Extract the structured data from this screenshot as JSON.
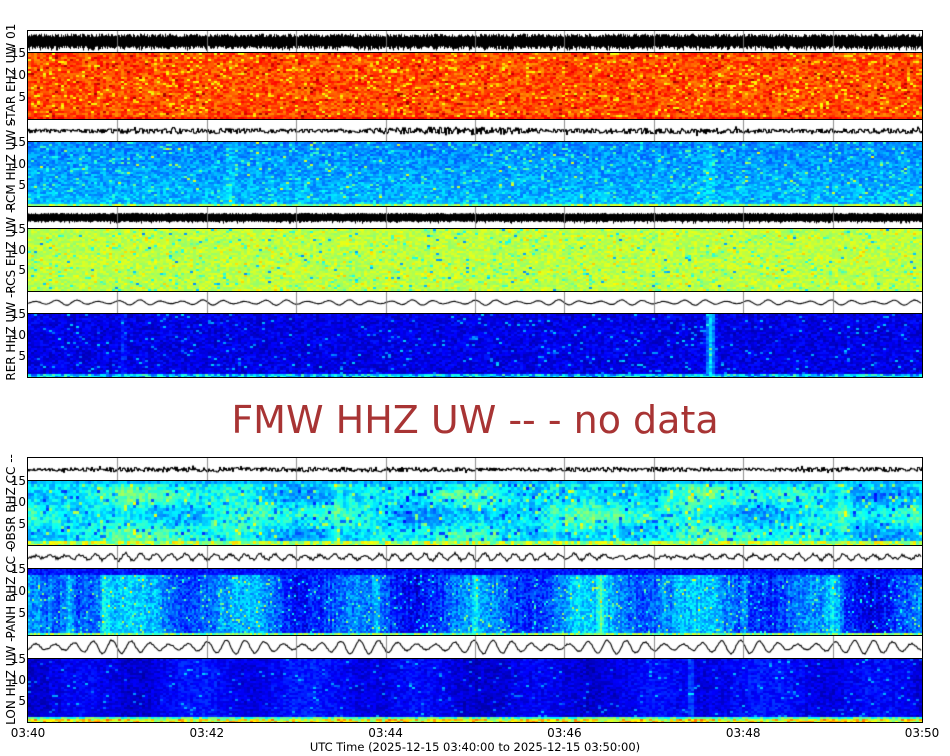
{
  "axis": {
    "x_tick_labels": [
      "03:40",
      "03:42",
      "03:44",
      "03:46",
      "03:48",
      "03:50"
    ],
    "x_label": "UTC Time (2025-12-15 03:40:00 to 2025-12-15 03:50:00)",
    "freq_tick_labels": [
      "15",
      "10",
      "5"
    ]
  },
  "no_data": {
    "text": "FMW HHZ UW -- - no data",
    "color": "#a83434"
  },
  "chart_data": {
    "type": "heatmap",
    "subtype": "multi-station seismic spectrograms with waveform traces",
    "colormap": "jet",
    "time_start": "2025-12-15 03:40:00",
    "time_end": "2025-12-15 03:50:00",
    "x_tick_labels": [
      "03:40",
      "03:42",
      "03:44",
      "03:46",
      "03:48",
      "03:50"
    ],
    "xlabel": "UTC Time (2025-12-15 03:40:00 to 2025-12-15 03:50:00)",
    "minute_gridlines": true,
    "freq_ticks_hz": [
      15,
      10,
      5
    ],
    "freq_range_hz": [
      0,
      15
    ],
    "no_data_station": {
      "label": "FMW HHZ UW --",
      "status": "no data"
    },
    "panels": [
      {
        "station": "STAR EHZ UW 01",
        "intensity": "very high (red/orange)",
        "trace": {
          "style": "dense",
          "amp": 0.88,
          "var": 0.45
        },
        "spec": {
          "base": 0.8,
          "noise": 0.07,
          "cw": 3,
          "ch": 2,
          "speckles": [
            {
              "p": 0.07,
              "v": 0.64,
              "j": 0.04
            },
            {
              "p": 0.05,
              "v": 0.92,
              "j": 0.05
            }
          ],
          "bands": [
            {
              "h": 2,
              "v": 0.85,
              "j": 0.06
            }
          ]
        }
      },
      {
        "station": "RCM HHZ UW --",
        "intensity": "low (blue, cyan speckles)",
        "trace": {
          "style": "noise",
          "amp": 0.3,
          "var": 0.6,
          "bursts": [
            {
              "x": 0.5,
              "w": 0.12,
              "m": 1.5
            }
          ]
        },
        "spec": {
          "base": 0.26,
          "noise": 0.06,
          "cw": 3,
          "ch": 2,
          "vgrad": 0.05,
          "speckles": [
            {
              "p": 0.06,
              "v": 0.43,
              "j": 0.05
            },
            {
              "p": 0.012,
              "v": 0.56,
              "j": 0.04
            }
          ],
          "bands": [
            {
              "h": 3,
              "v": 0.52,
              "j": 0.1
            }
          ],
          "streaks": [
            {
              "x": 0.225,
              "w": 8,
              "b": 0.05
            },
            {
              "x": 0.76,
              "w": 8,
              "b": 0.06
            }
          ]
        }
      },
      {
        "station": "RCS EHZ UW --",
        "intensity": "moderate-high (yellow-green)",
        "trace": {
          "style": "dense",
          "amp": 0.52,
          "var": 0.3
        },
        "spec": {
          "base": 0.56,
          "noise": 0.045,
          "cw": 3,
          "ch": 2,
          "speckles": [
            {
              "p": 0.05,
              "v": 0.44,
              "j": 0.05
            },
            {
              "p": 0.012,
              "v": 0.3,
              "j": 0.05
            },
            {
              "p": 0.05,
              "v": 0.65,
              "j": 0.03
            }
          ]
        }
      },
      {
        "station": "RER HHZ UW --",
        "intensity": "very low (dark navy), bright column near 03:47.6",
        "trace": {
          "style": "wave",
          "amp": 0.3,
          "f1": 0.3,
          "f2": 0.09,
          "n": 0.07
        },
        "spec": {
          "base": 0.1,
          "noise": 0.05,
          "cw": 3,
          "ch": 2,
          "speckles": [
            {
              "p": 0.04,
              "v": 0.27,
              "j": 0.06
            }
          ],
          "bands": [
            {
              "h": 3,
              "v": 0.33,
              "j": 0.14
            }
          ],
          "streaks": [
            {
              "x": 0.762,
              "w": 7,
              "b": 0.24
            },
            {
              "x": 0.105,
              "w": 4,
              "b": 0.07
            }
          ]
        }
      },
      {
        "station": "OBSR BHZ CC --",
        "intensity": "moderate (cyan with dark blue mottling, yellow-green base band)",
        "trace": {
          "style": "noise",
          "amp": 0.24,
          "var": 0.7,
          "bursts": [
            {
              "x": 0.25,
              "w": 0.08,
              "m": 1.4
            }
          ]
        },
        "spec": {
          "base": 0.37,
          "noise": 0.065,
          "cw": 3,
          "ch": 3,
          "smooth": 0.07,
          "colvar": 0.05,
          "speckles": [
            {
              "p": 0.1,
              "v": 0.24,
              "j": 0.06
            },
            {
              "p": 0.05,
              "v": 0.53,
              "j": 0.05
            }
          ],
          "bands": [
            {
              "h": 6,
              "v": 0.55,
              "j": 0.12
            }
          ],
          "topband": {
            "h": 2,
            "v": 0.3,
            "j": 0.05
          },
          "streaks": [
            {
              "x": 0.345,
              "w": 6,
              "b": 0.07
            },
            {
              "x": 0.585,
              "w": 5,
              "b": 0.06
            },
            {
              "x": 0.74,
              "w": 5,
              "b": 0.07
            },
            {
              "x": 0.91,
              "w": 9,
              "b": 0.09
            }
          ]
        }
      },
      {
        "station": "PANH BHZ CC --",
        "intensity": "low-moderate (blue with vertical cyan streaks)",
        "trace": {
          "style": "wavenoise",
          "amp": 0.3,
          "f1": 0.42,
          "n": 0.5,
          "bursts": [
            {
              "x": 0.36,
              "w": 0.1,
              "m": 2.0
            },
            {
              "x": 0.09,
              "w": 0.04,
              "m": 1.5
            },
            {
              "x": 0.62,
              "w": 0.05,
              "m": 1.5
            }
          ]
        },
        "spec": {
          "base": 0.23,
          "noise": 0.07,
          "cw": 2,
          "ch": 2,
          "colvar": 0.12,
          "speckles": [
            {
              "p": 0.04,
              "v": 0.46,
              "j": 0.06
            }
          ],
          "bands": [
            {
              "h": 2,
              "v": 0.5,
              "j": 0.1
            }
          ],
          "topband": {
            "h": 5,
            "v": 0.14,
            "j": 0.05
          },
          "streaks": [
            {
              "x": 0.045,
              "w": 10,
              "b": 0.14
            },
            {
              "x": 0.085,
              "w": 6,
              "b": 0.12
            },
            {
              "x": 0.39,
              "w": 6,
              "b": 0.13
            },
            {
              "x": 0.5,
              "w": 5,
              "b": 0.11
            },
            {
              "x": 0.64,
              "w": 6,
              "b": 0.12
            },
            {
              "x": 0.8,
              "w": 5,
              "b": 0.1
            },
            {
              "x": 0.9,
              "w": 12,
              "b": 0.13
            }
          ]
        }
      },
      {
        "station": "LON HHZ UW --",
        "intensity": "very low (dark blue, green/yellow base band)",
        "trace": {
          "style": "wave",
          "amp": 0.72,
          "f1": 0.33,
          "f2": 0.05,
          "n": 0.1
        },
        "spec": {
          "base": 0.11,
          "noise": 0.04,
          "cw": 3,
          "ch": 2,
          "colvar": 0.04,
          "speckles": [
            {
              "p": 0.03,
              "v": 0.25,
              "j": 0.05
            }
          ],
          "bands": [
            {
              "h": 3,
              "v": 0.62,
              "j": 0.15
            },
            {
              "h": 3,
              "v": 0.45,
              "j": 0.1
            }
          ],
          "streaks": [
            {
              "x": 0.74,
              "w": 5,
              "b": 0.1
            }
          ]
        }
      }
    ]
  }
}
